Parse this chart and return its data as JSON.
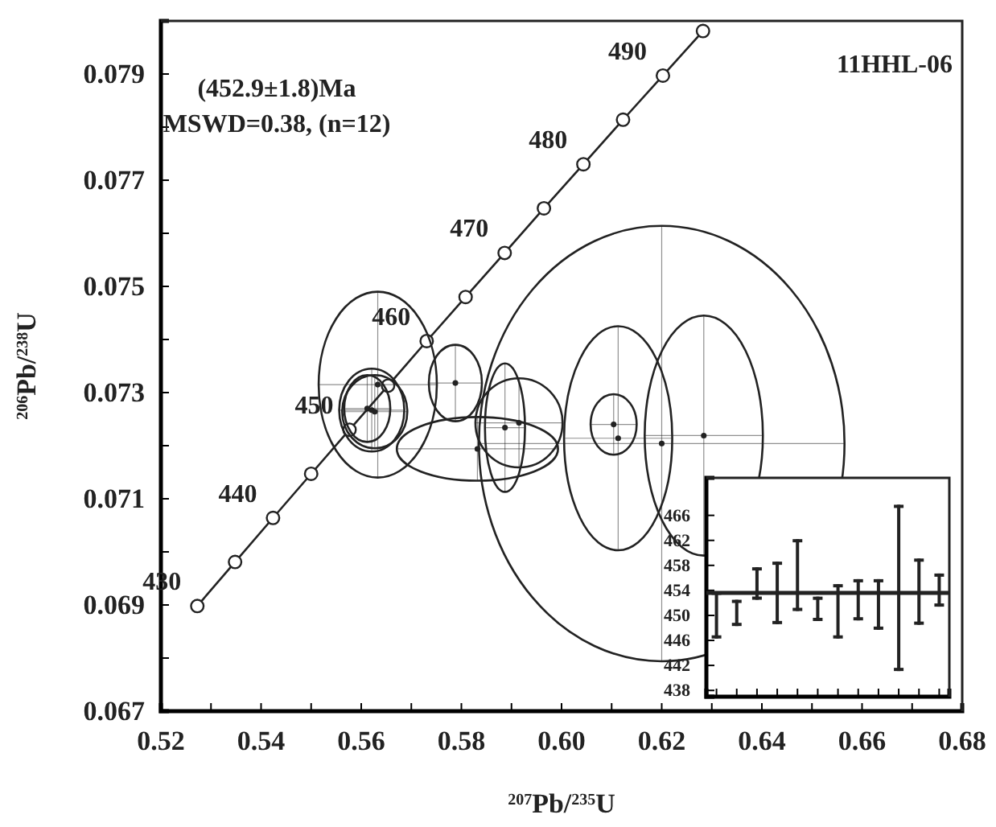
{
  "chart_data": [
    {
      "type": "scatter",
      "xlabel": "$^{207}$Pb/$^{235}$U",
      "ylabel": "$^{206}$Pb/$^{238}$U",
      "xlim": [
        0.52,
        0.68
      ],
      "ylim": [
        0.067,
        0.08
      ],
      "xticks": [
        0.52,
        {
          "value": 0.53,
          "label": null
        },
        0.54,
        {
          "value": 0.55,
          "label": null
        },
        0.56,
        {
          "value": 0.57,
          "label": null
        },
        0.58,
        {
          "value": 0.59,
          "label": null
        },
        {
          "value": 0.6,
          "label": "0.60"
        },
        {
          "value": 0.61,
          "label": null
        },
        0.62,
        {
          "value": 0.63,
          "label": null
        },
        0.64,
        {
          "value": 0.65,
          "label": null
        },
        0.66,
        {
          "value": 0.67,
          "label": null
        },
        0.68
      ],
      "yticks": [
        0.067,
        {
          "value": 0.068,
          "label": null
        },
        0.069,
        {
          "value": 0.07,
          "label": null
        },
        0.071,
        {
          "value": 0.072,
          "label": null
        },
        0.073,
        {
          "value": 0.074,
          "label": null
        },
        0.075,
        {
          "value": 0.076,
          "label": null
        },
        0.077,
        {
          "value": 0.078,
          "label": null
        },
        0.079
      ],
      "grid": false,
      "series": [
        {
          "type": "line",
          "color": "#222222",
          "marker": "circle",
          "line_style": "solid",
          "x": [
            0.52727,
            0.53481,
            0.54239,
            0.55,
            0.55766,
            0.56535,
            0.57307,
            0.58084,
            0.58864,
            0.59648,
            0.60436,
            0.61228,
            0.62024,
            0.62824
          ],
          "values": [
            0.06898,
            0.06981,
            0.07064,
            0.07147,
            0.0723,
            0.07313,
            0.07397,
            0.0748,
            0.07563,
            0.07647,
            0.0773,
            0.07814,
            0.07897,
            0.07981
          ]
        },
        {
          "type": "scatter",
          "color": "#222222",
          "marker": "circle",
          "x": [
            0.62,
            0.6284,
            0.6113,
            0.6104,
            0.5915,
            0.5887,
            0.5832,
            0.5788,
            0.5633,
            0.5621,
            0.5627,
            0.5612
          ],
          "values": [
            0.07204,
            0.07219,
            0.07214,
            0.0724,
            0.07243,
            0.07234,
            0.07194,
            0.07318,
            0.07315,
            0.07267,
            0.07264,
            0.0727
          ],
          "xerrors": [
            0.0365,
            0.0118,
            0.0108,
            0.0046,
            0.0087,
            0.004,
            0.0161,
            0.0053,
            0.0118,
            0.0065,
            0.0065,
            0.0046
          ],
          "errors": [
            0.0041,
            0.00226,
            0.00211,
            0.00057,
            0.00084,
            0.00121,
            0.0006,
            0.00072,
            0.00175,
            0.00078,
            0.00069,
            0.00063
          ]
        }
      ],
      "annotations": [
        {
          "text": "430",
          "x": 0.52727,
          "y": 0.06898
        },
        {
          "text": "440",
          "x": 0.54239,
          "y": 0.07064
        },
        {
          "text": "450",
          "x": 0.55766,
          "y": 0.0723
        },
        {
          "text": "460",
          "x": 0.57307,
          "y": 0.07397
        },
        {
          "text": "470",
          "x": 0.58864,
          "y": 0.07563
        },
        {
          "text": "480",
          "x": 0.60436,
          "y": 0.0773
        },
        {
          "text": "490",
          "x": 0.62024,
          "y": 0.07897
        },
        "(452.9±1.8)Ma",
        "MSWD=0.38, (n=12)",
        "11HHL-06"
      ]
    },
    {
      "type": "bar",
      "categories": [
        null,
        null,
        null,
        null,
        null,
        null,
        null,
        null,
        null,
        null,
        null,
        null
      ],
      "ylim": [
        437,
        472
      ],
      "yticks": [
        438,
        442,
        446,
        450,
        454,
        458,
        462,
        466
      ],
      "tick_labels": "y",
      "color": "#222222",
      "base": [
        446.3,
        448.3,
        452.5,
        448.6,
        450.7,
        449.1,
        446.3,
        449.2,
        447.7,
        441.1,
        448.5,
        451.4
      ],
      "values": [
        7.5,
        4.2,
        5.2,
        10.0,
        11.5,
        3.9,
        8.7,
        6.6,
        8.1,
        26.6,
        10.6,
        5.3
      ],
      "ref_lines": [
        {
          "axis": "y",
          "value": 453.6,
          "color": "#222222"
        }
      ]
    }
  ]
}
